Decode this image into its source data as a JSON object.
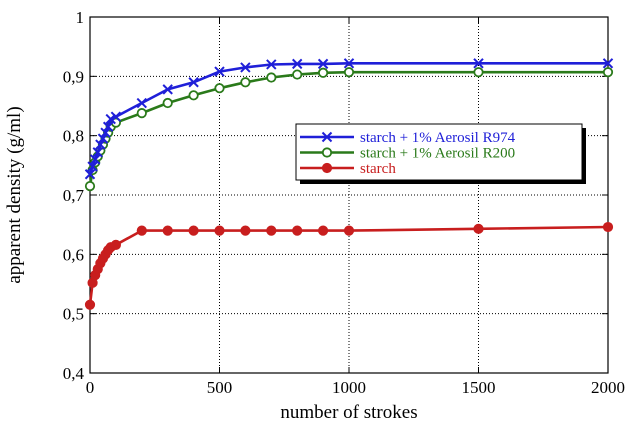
{
  "chart_data": {
    "type": "line",
    "title": "",
    "xlabel": "number of strokes",
    "ylabel": "apparent density (g/ml)",
    "xlim": [
      0,
      2000
    ],
    "ylim": [
      0.4,
      1.0
    ],
    "x_ticks": [
      "0",
      "500",
      "1000",
      "1500",
      "2000"
    ],
    "y_ticks": [
      "0,4",
      "0,5",
      "0,6",
      "0,7",
      "0,8",
      "0,9",
      "1"
    ],
    "grid": "dotted",
    "legend_position": "right-center",
    "series": [
      {
        "name": "starch + 1% Aerosil R974",
        "color": "#1f1fd8",
        "marker": "x",
        "x": [
          0,
          10,
          20,
          30,
          40,
          50,
          60,
          70,
          80,
          100,
          200,
          300,
          400,
          500,
          600,
          700,
          800,
          900,
          1000,
          1500,
          2000
        ],
        "y": [
          0.735,
          0.748,
          0.76,
          0.772,
          0.785,
          0.795,
          0.805,
          0.815,
          0.828,
          0.832,
          0.855,
          0.878,
          0.89,
          0.908,
          0.915,
          0.92,
          0.921,
          0.921,
          0.922,
          0.922,
          0.922
        ]
      },
      {
        "name": "starch + 1% Aerosil R200",
        "color": "#2a7a1a",
        "marker": "o-open",
        "x": [
          0,
          10,
          20,
          30,
          40,
          50,
          60,
          70,
          80,
          100,
          200,
          300,
          400,
          500,
          600,
          700,
          800,
          900,
          1000,
          1500,
          2000
        ],
        "y": [
          0.715,
          0.742,
          0.755,
          0.765,
          0.775,
          0.785,
          0.795,
          0.805,
          0.815,
          0.822,
          0.838,
          0.855,
          0.868,
          0.88,
          0.89,
          0.898,
          0.903,
          0.906,
          0.907,
          0.907,
          0.907
        ]
      },
      {
        "name": "starch",
        "color": "#c81e1e",
        "marker": "o-filled",
        "x": [
          0,
          10,
          20,
          30,
          40,
          50,
          60,
          70,
          80,
          100,
          200,
          300,
          400,
          500,
          600,
          700,
          800,
          900,
          1000,
          1500,
          2000
        ],
        "y": [
          0.515,
          0.552,
          0.565,
          0.575,
          0.585,
          0.593,
          0.6,
          0.607,
          0.612,
          0.616,
          0.64,
          0.64,
          0.64,
          0.64,
          0.64,
          0.64,
          0.64,
          0.64,
          0.64,
          0.643,
          0.646
        ]
      }
    ]
  }
}
